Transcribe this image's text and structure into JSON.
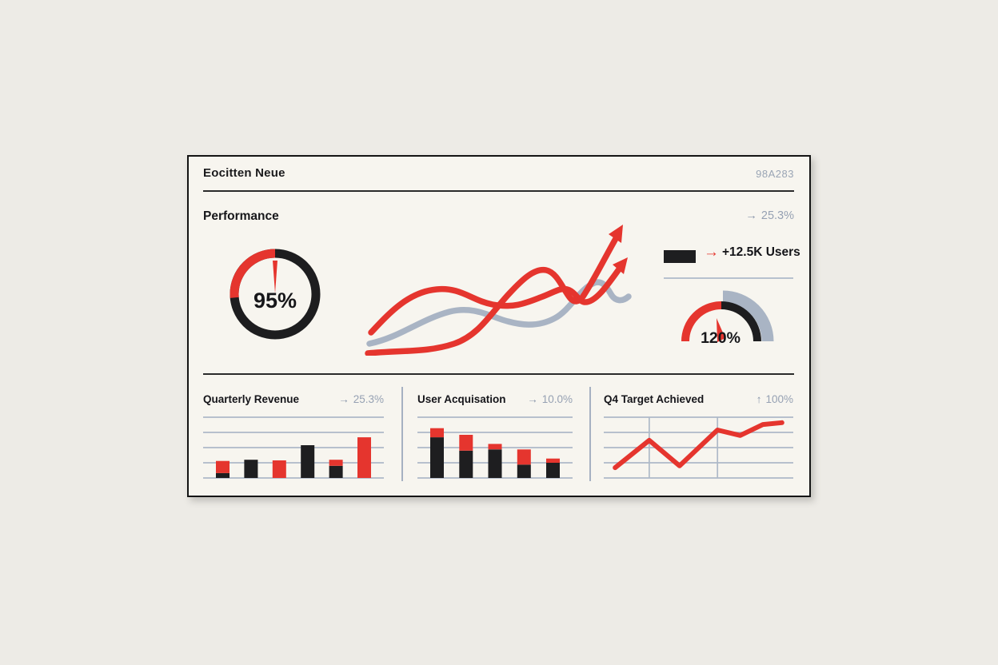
{
  "colors": {
    "red": "#e5352e",
    "black": "#1e1e20",
    "grid": "#aeb9c8",
    "slate": "#a9b4c4",
    "muted_text": "#96a1b3",
    "dark_text": "#17171a",
    "card_bg": "#f7f5ef",
    "page_bg": "#edebe6"
  },
  "header": {
    "brand": "Eocitten Neue",
    "code": "98A283"
  },
  "performance": {
    "title": "Performance",
    "trend": {
      "arrow": "→",
      "value": "25.3%"
    },
    "donut": {
      "value": "95%"
    },
    "users_stat": {
      "arrow": "→",
      "label": "+12.5K Users"
    },
    "gauge": {
      "value": "120%"
    }
  },
  "panels": [
    {
      "title": "Quarterly Revenue",
      "trend_arrow": "→",
      "trend_value": "25.3%"
    },
    {
      "title": "User Acquisation",
      "trend_arrow": "→",
      "trend_value": "10.0%"
    },
    {
      "title": "Q4 Target Achieved",
      "trend_arrow": "↑",
      "trend_value": "100%"
    }
  ],
  "chart_data": [
    {
      "id": "performance-donut",
      "type": "donut",
      "title": "Performance score",
      "value": 95,
      "unit": "%",
      "label": "95%",
      "ring": [
        {
          "color": "red",
          "fraction": 0.26
        },
        {
          "color": "black",
          "fraction": 0.74
        }
      ],
      "needle": true
    },
    {
      "id": "trend-illustration",
      "type": "line",
      "description": "decorative trend curves: two rising red lines ending in up-right arrows, one muted gray line",
      "series": [
        {
          "name": "red-line-upper-arrow",
          "color": "red"
        },
        {
          "name": "red-line-lower-arrow",
          "color": "red"
        },
        {
          "name": "gray-line",
          "color": "slate"
        }
      ]
    },
    {
      "id": "users-stat",
      "type": "stat",
      "label": "+12.5K Users",
      "swatch": "black",
      "arrow": "red"
    },
    {
      "id": "capacity-gauge",
      "type": "gauge",
      "value": 120,
      "unit": "%",
      "label": "120%",
      "arcs": [
        {
          "color": "red",
          "span": "left-to-top"
        },
        {
          "color": "black",
          "span": "top-to-right"
        },
        {
          "color": "slate",
          "span": "outer top-to-right"
        }
      ]
    },
    {
      "id": "quarterly-revenue",
      "type": "bar",
      "title": "Quarterly Revenue",
      "trend": "25.3%",
      "hlines": 5,
      "ylim": [
        0,
        100
      ],
      "bars": [
        {
          "segments": [
            {
              "color": "black",
              "value": 8
            },
            {
              "color": "red",
              "value": 20
            }
          ]
        },
        {
          "segments": [
            {
              "color": "black",
              "value": 30
            }
          ]
        },
        {
          "segments": [
            {
              "color": "red",
              "value": 29
            }
          ]
        },
        {
          "segments": [
            {
              "color": "black",
              "value": 54
            }
          ]
        },
        {
          "segments": [
            {
              "color": "black",
              "value": 20
            },
            {
              "color": "red",
              "value": 10
            }
          ]
        },
        {
          "segments": [
            {
              "color": "red",
              "value": 67
            }
          ]
        }
      ]
    },
    {
      "id": "user-acquisation",
      "type": "bar",
      "title": "User Acquisation",
      "trend": "10.0%",
      "hlines": 5,
      "ylim": [
        0,
        100
      ],
      "bars": [
        {
          "segments": [
            {
              "color": "black",
              "value": 67
            },
            {
              "color": "red",
              "value": 15
            }
          ]
        },
        {
          "segments": [
            {
              "color": "black",
              "value": 45
            },
            {
              "color": "red",
              "value": 26
            }
          ]
        },
        {
          "segments": [
            {
              "color": "black",
              "value": 47
            },
            {
              "color": "red",
              "value": 9
            }
          ]
        },
        {
          "segments": [
            {
              "color": "black",
              "value": 22
            },
            {
              "color": "red",
              "value": 25
            }
          ]
        },
        {
          "segments": [
            {
              "color": "black",
              "value": 25
            },
            {
              "color": "red",
              "value": 7
            }
          ]
        }
      ]
    },
    {
      "id": "q4-target",
      "type": "line",
      "title": "Q4 Target Achieved",
      "trend": "100%",
      "hlines": 5,
      "vlines": [
        24,
        60
      ],
      "ylim": [
        0,
        100
      ],
      "points": [
        {
          "x": 6,
          "y": 17
        },
        {
          "x": 24,
          "y": 62
        },
        {
          "x": 40,
          "y": 20
        },
        {
          "x": 60,
          "y": 79
        },
        {
          "x": 72,
          "y": 70
        },
        {
          "x": 84,
          "y": 88
        },
        {
          "x": 94,
          "y": 91
        }
      ]
    }
  ]
}
